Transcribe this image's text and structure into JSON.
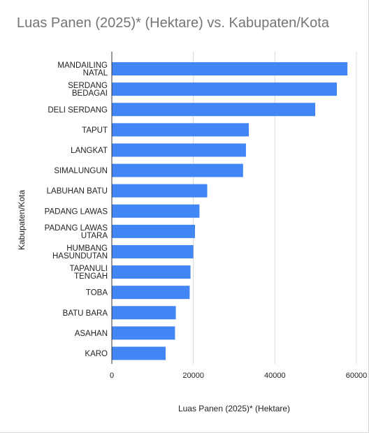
{
  "chart_data": {
    "type": "bar",
    "orientation": "horizontal",
    "title": "Luas Panen (2025)* (Hektare) vs. Kabupaten/Kota",
    "xlabel": "Luas Panen (2025)* (Hektare)",
    "ylabel": "Kabupaten/Kota",
    "categories": [
      "MANDAILING NATAL",
      "SERDANG BEDAGAI",
      "DELI SERDANG",
      "TAPUT",
      "LANGKAT",
      "SIMALUNGUN",
      "LABUHAN BATU",
      "PADANG LAWAS",
      "PADANG LAWAS UTARA",
      "HUMBANG HASUNDUTAN",
      "TAPANULI TENGAH",
      "TOBA",
      "BATU BARA",
      "ASAHAN",
      "KARO"
    ],
    "values": [
      57800,
      55200,
      49900,
      33600,
      32900,
      32200,
      23400,
      21500,
      20400,
      20000,
      19300,
      19100,
      15700,
      15500,
      13200
    ],
    "xlim": [
      0,
      60000
    ],
    "xticks": [
      "0",
      "20000",
      "40000",
      "60000"
    ],
    "xtick_values": [
      0,
      20000,
      40000,
      60000
    ],
    "grid": true,
    "colors": {
      "bar": "#4285f4",
      "grid": "#d9d9d9",
      "axis": "#333333"
    }
  }
}
